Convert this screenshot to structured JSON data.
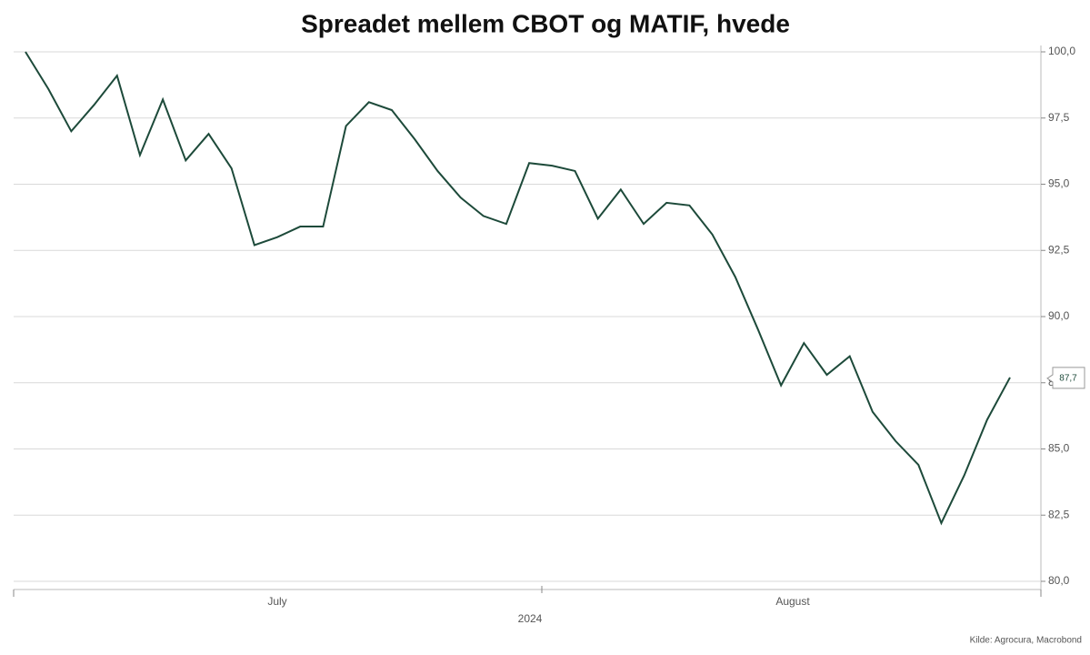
{
  "chart_data": {
    "type": "line",
    "title": "Spreadet mellem CBOT og MATIF, hvede",
    "categories": [
      null,
      null,
      null,
      null,
      null,
      null,
      null,
      null,
      null,
      null,
      null,
      null,
      null,
      null,
      null,
      null,
      null,
      null,
      null,
      null,
      null,
      null,
      null,
      null,
      null,
      null,
      null,
      null,
      null,
      null,
      null,
      null,
      null,
      null,
      null,
      null,
      null,
      null,
      null,
      null,
      null,
      null,
      null,
      null
    ],
    "x_axis_labels": [
      "July",
      "August"
    ],
    "x_axis_year": "2024",
    "series": [
      {
        "color": "#1d4a3a",
        "values": [
          100.0,
          98.6,
          97.0,
          98.0,
          99.1,
          96.1,
          98.2,
          95.9,
          96.9,
          95.6,
          92.7,
          93.0,
          93.4,
          93.4,
          97.2,
          98.1,
          97.8,
          96.7,
          95.5,
          94.5,
          93.8,
          93.5,
          95.8,
          95.7,
          95.5,
          93.7,
          94.8,
          93.5,
          94.3,
          94.2,
          93.1,
          91.5,
          89.5,
          87.4,
          89.0,
          87.8,
          88.5,
          86.4,
          85.3,
          84.4,
          82.2,
          84.0,
          86.1,
          87.7
        ],
        "last_value_label": "87,7"
      }
    ],
    "ylim": [
      80,
      100
    ],
    "yticks": [
      {
        "value": 80,
        "label": "80,0"
      },
      {
        "value": 82.5,
        "label": "82,5"
      },
      {
        "value": 85,
        "label": "85,0"
      },
      {
        "value": 87.5,
        "label": "87,5"
      },
      {
        "value": 90,
        "label": "90,0"
      },
      {
        "value": 92.5,
        "label": "92,5"
      },
      {
        "value": 95,
        "label": "95,0"
      },
      {
        "value": 97.5,
        "label": "97,5"
      },
      {
        "value": 100,
        "label": "100,0"
      }
    ],
    "grid": true,
    "source": "Kilde: Agrocura, Macrobond"
  }
}
